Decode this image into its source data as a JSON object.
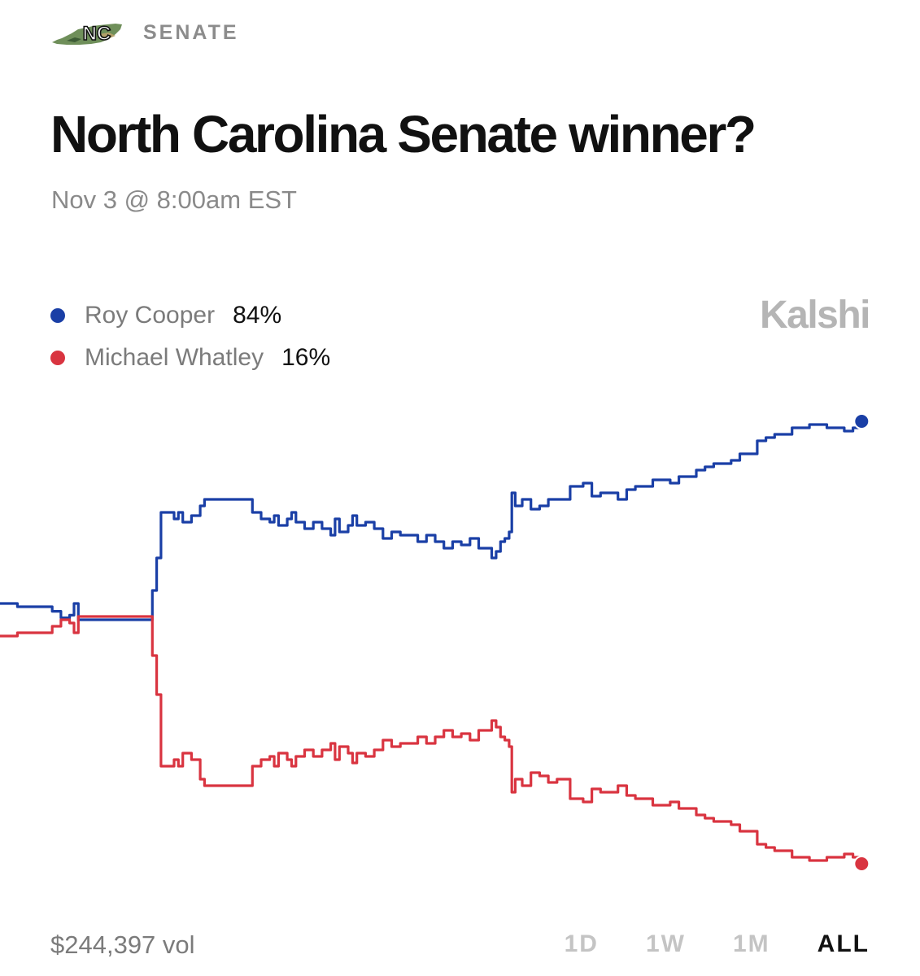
{
  "header": {
    "logo_text": "NC",
    "category": "SENATE"
  },
  "market": {
    "title": "North Carolina Senate winner?",
    "subtitle": "Nov 3 @ 8:00am EST",
    "brand": "Kalshi"
  },
  "legend": [
    {
      "name": "Roy Cooper",
      "value": "84%",
      "color": "#1a3fa6"
    },
    {
      "name": "Michael Whatley",
      "value": "16%",
      "color": "#d93440"
    }
  ],
  "footer": {
    "volume": "$244,397 vol",
    "ranges": [
      "1D",
      "1W",
      "1M",
      "ALL"
    ],
    "active_range": "ALL"
  },
  "chart_data": {
    "type": "line",
    "x_unit": "relative time (0 = start, 100 = end)",
    "ylim": [
      15,
      85
    ],
    "grid": false,
    "legend_position": "top-left",
    "series": [
      {
        "name": "Roy Cooper",
        "color": "#1a3fa6",
        "points": [
          [
            0,
            56
          ],
          [
            2,
            56
          ],
          [
            2,
            55.5
          ],
          [
            6,
            55.5
          ],
          [
            6,
            54.8
          ],
          [
            7,
            53.8
          ],
          [
            8,
            54.2
          ],
          [
            8.5,
            56
          ],
          [
            9,
            53.5
          ],
          [
            17,
            53.5
          ],
          [
            17.5,
            58
          ],
          [
            18,
            63
          ],
          [
            18.5,
            70
          ],
          [
            19,
            70
          ],
          [
            20,
            69
          ],
          [
            20.5,
            70
          ],
          [
            21,
            68.5
          ],
          [
            22,
            69.5
          ],
          [
            23,
            71
          ],
          [
            23.5,
            72
          ],
          [
            26,
            72
          ],
          [
            28,
            72
          ],
          [
            29,
            70
          ],
          [
            30,
            69
          ],
          [
            31,
            68.5
          ],
          [
            31.5,
            69.5
          ],
          [
            32,
            68
          ],
          [
            33,
            69
          ],
          [
            33.5,
            70
          ],
          [
            34,
            68.5
          ],
          [
            35,
            67.5
          ],
          [
            36,
            68.5
          ],
          [
            37,
            67.5
          ],
          [
            38,
            66.5
          ],
          [
            38.5,
            69
          ],
          [
            39,
            67
          ],
          [
            40,
            68
          ],
          [
            40.5,
            69.5
          ],
          [
            41,
            68
          ],
          [
            42,
            68.5
          ],
          [
            43,
            67.5
          ],
          [
            44,
            66
          ],
          [
            45,
            67
          ],
          [
            46,
            66.5
          ],
          [
            47,
            66.5
          ],
          [
            48,
            65.5
          ],
          [
            49,
            66.5
          ],
          [
            50,
            65.5
          ],
          [
            51,
            64.5
          ],
          [
            52,
            65.5
          ],
          [
            53,
            65
          ],
          [
            54,
            66
          ],
          [
            55,
            64.5
          ],
          [
            56,
            64.5
          ],
          [
            56.5,
            63
          ],
          [
            57,
            64
          ],
          [
            57.5,
            65.5
          ],
          [
            58,
            66
          ],
          [
            58.5,
            67
          ],
          [
            58.8,
            73
          ],
          [
            59.2,
            71
          ],
          [
            60,
            72
          ],
          [
            61,
            70.5
          ],
          [
            62,
            71
          ],
          [
            63,
            72
          ],
          [
            64,
            72
          ],
          [
            65,
            72
          ],
          [
            65.5,
            74
          ],
          [
            66,
            74
          ],
          [
            67,
            74.5
          ],
          [
            68,
            72.5
          ],
          [
            69,
            73
          ],
          [
            70,
            73
          ],
          [
            71,
            72
          ],
          [
            72,
            73.5
          ],
          [
            73,
            74
          ],
          [
            74,
            74
          ],
          [
            75,
            75
          ],
          [
            76,
            75
          ],
          [
            77,
            74.5
          ],
          [
            78,
            75.5
          ],
          [
            79,
            75.5
          ],
          [
            80,
            76.5
          ],
          [
            81,
            77
          ],
          [
            82,
            77.5
          ],
          [
            83,
            77.5
          ],
          [
            84,
            78
          ],
          [
            85,
            79
          ],
          [
            86,
            79
          ],
          [
            87,
            81
          ],
          [
            88,
            81.5
          ],
          [
            89,
            82
          ],
          [
            90,
            82
          ],
          [
            91,
            83
          ],
          [
            92,
            83
          ],
          [
            93,
            83.5
          ],
          [
            94,
            83.5
          ],
          [
            95,
            83
          ],
          [
            96,
            83
          ],
          [
            97,
            82.5
          ],
          [
            98,
            83
          ],
          [
            99,
            84
          ]
        ]
      },
      {
        "name": "Michael Whatley",
        "color": "#d93440",
        "points": [
          [
            0,
            51
          ],
          [
            2,
            51
          ],
          [
            2,
            51.5
          ],
          [
            6,
            51.5
          ],
          [
            6,
            52.5
          ],
          [
            7,
            53.5
          ],
          [
            8,
            53
          ],
          [
            8.5,
            51.5
          ],
          [
            9,
            54
          ],
          [
            17,
            54
          ],
          [
            17.5,
            48
          ],
          [
            18,
            42
          ],
          [
            18.5,
            31
          ],
          [
            19,
            31
          ],
          [
            20,
            32
          ],
          [
            20.5,
            31
          ],
          [
            21,
            33
          ],
          [
            22,
            32
          ],
          [
            23,
            29
          ],
          [
            23.5,
            28
          ],
          [
            26,
            28
          ],
          [
            28,
            28
          ],
          [
            29,
            31
          ],
          [
            30,
            32
          ],
          [
            31,
            32.5
          ],
          [
            31.5,
            31
          ],
          [
            32,
            33
          ],
          [
            33,
            32
          ],
          [
            33.5,
            31
          ],
          [
            34,
            32.5
          ],
          [
            35,
            33.5
          ],
          [
            36,
            32.5
          ],
          [
            37,
            33.5
          ],
          [
            38,
            34.5
          ],
          [
            38.5,
            32
          ],
          [
            39,
            34
          ],
          [
            40,
            33
          ],
          [
            40.5,
            31.5
          ],
          [
            41,
            33
          ],
          [
            42,
            32.5
          ],
          [
            43,
            33.5
          ],
          [
            44,
            35
          ],
          [
            45,
            34
          ],
          [
            46,
            34.5
          ],
          [
            47,
            34.5
          ],
          [
            48,
            35.5
          ],
          [
            49,
            34.5
          ],
          [
            50,
            35.5
          ],
          [
            51,
            36.5
          ],
          [
            52,
            35.5
          ],
          [
            53,
            36
          ],
          [
            54,
            35
          ],
          [
            55,
            36.5
          ],
          [
            56,
            36.5
          ],
          [
            56.5,
            38
          ],
          [
            57,
            37
          ],
          [
            57.5,
            35.5
          ],
          [
            58,
            35
          ],
          [
            58.5,
            34
          ],
          [
            58.8,
            27
          ],
          [
            59.2,
            29
          ],
          [
            60,
            28
          ],
          [
            61,
            30
          ],
          [
            62,
            29.5
          ],
          [
            63,
            28.5
          ],
          [
            64,
            29
          ],
          [
            65,
            29
          ],
          [
            65.5,
            26
          ],
          [
            66,
            26
          ],
          [
            67,
            25.5
          ],
          [
            68,
            27.5
          ],
          [
            69,
            27
          ],
          [
            70,
            27
          ],
          [
            71,
            28
          ],
          [
            72,
            26.5
          ],
          [
            73,
            26
          ],
          [
            74,
            26
          ],
          [
            75,
            25
          ],
          [
            76,
            25
          ],
          [
            77,
            25.5
          ],
          [
            78,
            24.5
          ],
          [
            79,
            24.5
          ],
          [
            80,
            23.5
          ],
          [
            81,
            23
          ],
          [
            82,
            22.5
          ],
          [
            83,
            22.5
          ],
          [
            84,
            22
          ],
          [
            85,
            21
          ],
          [
            86,
            21
          ],
          [
            87,
            19
          ],
          [
            88,
            18.5
          ],
          [
            89,
            18
          ],
          [
            90,
            18
          ],
          [
            91,
            17
          ],
          [
            92,
            17
          ],
          [
            93,
            16.5
          ],
          [
            94,
            16.5
          ],
          [
            95,
            17
          ],
          [
            96,
            17
          ],
          [
            97,
            17.5
          ],
          [
            98,
            17
          ],
          [
            99,
            16
          ]
        ]
      }
    ]
  }
}
